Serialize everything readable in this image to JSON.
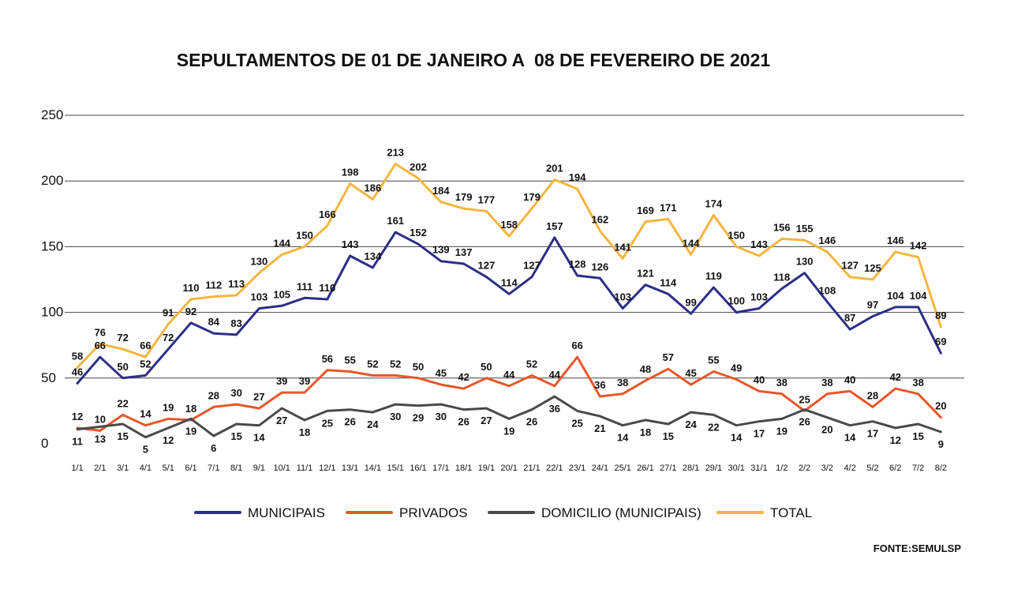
{
  "chart_data": {
    "type": "line",
    "title": "SEPULTAMENTOS DE 01 DE JANEIRO A  08 DE FEVEREIRO DE 2021",
    "source": "FONTE:SEMULSP",
    "xlabel": "",
    "ylabel": "",
    "ylim": [
      0,
      250
    ],
    "yticks": [
      0,
      50,
      100,
      150,
      200,
      250
    ],
    "grid": true,
    "legend_position": "bottom",
    "categories": [
      "1/1",
      "2/1",
      "3/1",
      "4/1",
      "5/1",
      "6/1",
      "7/1",
      "8/1",
      "9/1",
      "10/1",
      "11/1",
      "12/1",
      "13/1",
      "14/1",
      "15/1",
      "16/1",
      "17/1",
      "18/1",
      "19/1",
      "20/1",
      "21/1",
      "22/1",
      "23/1",
      "24/1",
      "25/1",
      "26/1",
      "27/1",
      "28/1",
      "29/1",
      "30/1",
      "31/1",
      "1/2",
      "2/2",
      "3/2",
      "4/2",
      "5/2",
      "6/2",
      "7/2",
      "8/2"
    ],
    "series": [
      {
        "name": "MUNICIPAIS",
        "color": "#2b2f86",
        "values": [
          46,
          66,
          50,
          52,
          72,
          92,
          84,
          83,
          103,
          105,
          111,
          110,
          143,
          134,
          161,
          152,
          139,
          137,
          127,
          114,
          127,
          157,
          128,
          126,
          103,
          121,
          114,
          99,
          119,
          100,
          103,
          118,
          130,
          108,
          87,
          97,
          104,
          104,
          69
        ]
      },
      {
        "name": "PRIVADOS",
        "color": "#e8572a",
        "values": [
          12,
          10,
          22,
          14,
          19,
          18,
          28,
          30,
          27,
          39,
          39,
          56,
          55,
          52,
          52,
          50,
          45,
          42,
          50,
          44,
          52,
          44,
          66,
          36,
          38,
          48,
          57,
          45,
          55,
          49,
          40,
          38,
          25,
          38,
          40,
          28,
          42,
          38,
          20
        ]
      },
      {
        "name": "DOMICILIO (MUNICIPAIS)",
        "color": "#4a4a4a",
        "values": [
          11,
          13,
          15,
          5,
          12,
          19,
          6,
          15,
          14,
          27,
          18,
          25,
          26,
          24,
          30,
          29,
          30,
          26,
          27,
          19,
          26,
          36,
          25,
          21,
          14,
          18,
          15,
          24,
          22,
          14,
          17,
          19,
          26,
          20,
          14,
          17,
          12,
          15,
          9
        ]
      },
      {
        "name": "TOTAL",
        "color": "#f5b53f",
        "values": [
          58,
          76,
          72,
          66,
          91,
          110,
          112,
          113,
          130,
          144,
          150,
          166,
          198,
          186,
          213,
          202,
          184,
          179,
          177,
          158,
          179,
          201,
          194,
          162,
          141,
          169,
          171,
          144,
          174,
          150,
          143,
          156,
          155,
          146,
          127,
          125,
          146,
          142,
          89
        ]
      }
    ]
  }
}
